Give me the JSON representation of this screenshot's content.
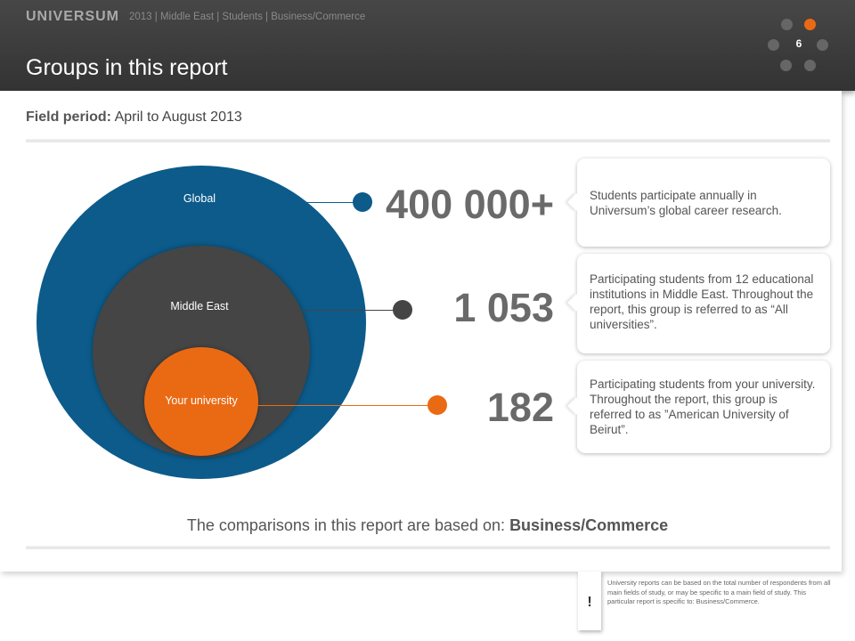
{
  "header": {
    "brand": "UNIVERSUM",
    "meta": "2013 | Middle East | Students | Business/Commerce",
    "title": "Groups in this report",
    "page_number": "6"
  },
  "field_period": {
    "label": "Field period:",
    "value": "April to August 2013"
  },
  "circles": {
    "global": "Global",
    "middle_east": "Middle East",
    "your_university": "Your university"
  },
  "groups": [
    {
      "number": "400 000+",
      "description": "Students participate annually in Universum’s global career research.",
      "color": "#0c5b8b"
    },
    {
      "number": "1 053",
      "description": "Participating students from 12 educational institutions in Middle East. Throughout the report, this group is referred to as “All universities”.",
      "color": "#454545"
    },
    {
      "number": "182",
      "description": "Participating students from your university. Throughout the report, this group is referred to as ”American University of Beirut”.",
      "color": "#ea6a14"
    }
  ],
  "comparison": {
    "prefix": "The comparisons in this report are based on:",
    "value": "Business/Commerce"
  },
  "note": {
    "icon": "!",
    "text": "University reports can be based on the total number of respondents from all main fields of study, or may be specific to a main field of study. This particular report is specific to: Business/Commerce."
  },
  "colors": {
    "header_bg": "#3b3b3b",
    "accent_orange": "#ea6a14",
    "global_blue": "#0c5b8b",
    "dark_gray": "#454545"
  }
}
